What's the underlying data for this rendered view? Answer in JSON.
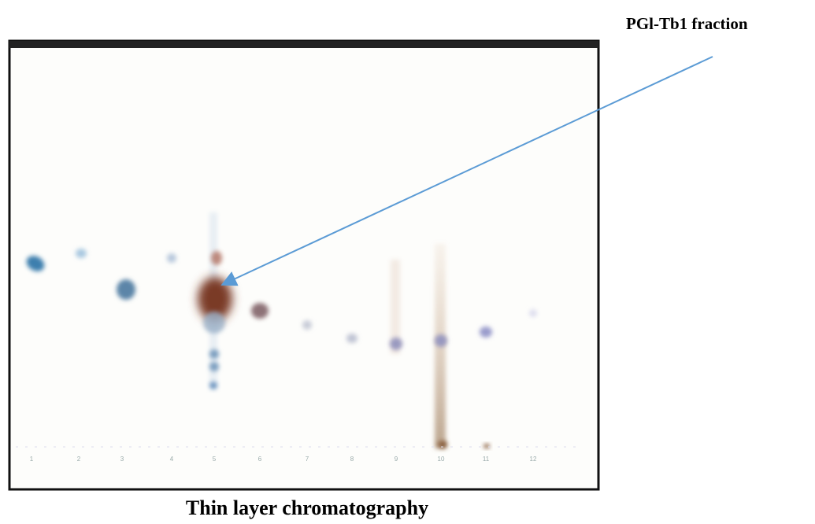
{
  "annotation": {
    "label": "PGl-Tb1 fraction"
  },
  "caption": "Thin layer chromatography",
  "plate": {
    "lane_labels": [
      "1",
      "2",
      "3",
      "4",
      "5",
      "6",
      "7",
      "8",
      "9",
      "10",
      "11",
      "12"
    ]
  }
}
